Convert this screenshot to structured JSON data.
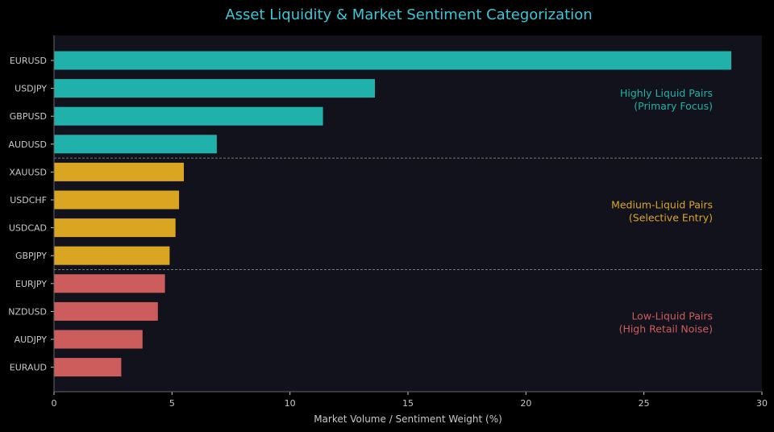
{
  "chart_data": {
    "type": "bar",
    "orientation": "horizontal",
    "title": "Asset Liquidity & Market Sentiment Categorization",
    "xlabel": "Market Volume / Sentiment Weight (%)",
    "ylabel": "",
    "xlim": [
      0,
      30
    ],
    "xticks": [
      0,
      5,
      10,
      15,
      20,
      25,
      30
    ],
    "grid": false,
    "categories": [
      "EURUSD",
      "USDJPY",
      "GBPUSD",
      "AUDUSD",
      "XAUUSD",
      "USDCHF",
      "USDCAD",
      "GBPJPY",
      "EURJPY",
      "NZDUSD",
      "AUDJPY",
      "EURAUD"
    ],
    "values": [
      28.7,
      13.6,
      11.4,
      6.9,
      5.5,
      5.3,
      5.15,
      4.9,
      4.7,
      4.4,
      3.75,
      2.85
    ],
    "groups": [
      {
        "line1": "Highly Liquid Pairs",
        "line2": "(Primary Focus)",
        "color": "#20b2aa",
        "start": 0,
        "end": 3
      },
      {
        "line1": "Medium-Liquid Pairs",
        "line2": "(Selective Entry)",
        "color": "#daa520",
        "start": 4,
        "end": 7
      },
      {
        "line1": "Low-Liquid Pairs",
        "line2": "(High Retail Noise)",
        "color": "#cd5c5c",
        "start": 8,
        "end": 11
      }
    ]
  },
  "colors": {
    "background": "#000000",
    "plot_background": "#11121b",
    "title": "#3cc6d6",
    "text": "#c8c8c8",
    "separator": "#9a9a9a"
  }
}
